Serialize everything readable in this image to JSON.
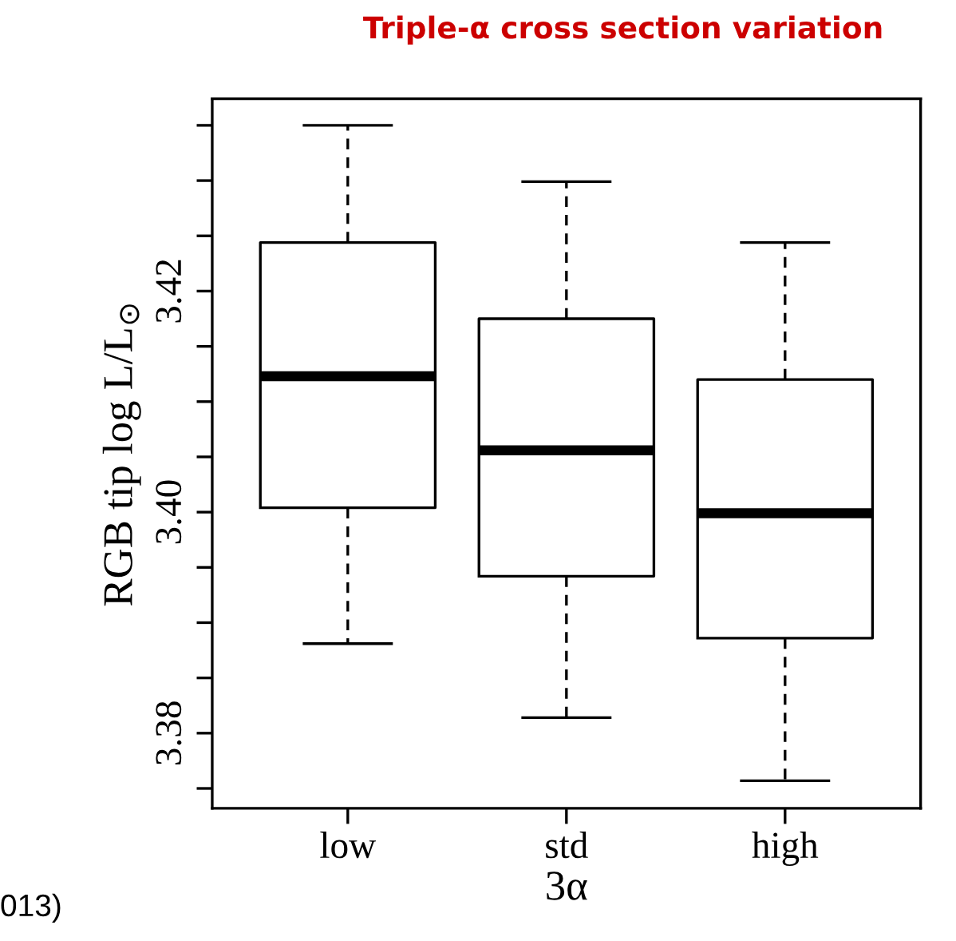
{
  "chart_data": {
    "type": "box",
    "title": "Triple-α cross section variation",
    "xlabel": "3α",
    "ylabel": "RGB tip log L/L$_{⊙}$",
    "categories": [
      "low",
      "std",
      "high"
    ],
    "boxes": [
      {
        "low": 3.3881,
        "q1": 3.4004,
        "median": 3.4123,
        "q3": 3.4244,
        "high": 3.435
      },
      {
        "low": 3.3814,
        "q1": 3.3942,
        "median": 3.4056,
        "q3": 3.4175,
        "high": 3.4299
      },
      {
        "low": 3.3757,
        "q1": 3.3886,
        "median": 3.3999,
        "q3": 3.412,
        "high": 3.4244
      }
    ],
    "ylim": [
      3.3732,
      3.4374
    ],
    "yticks": [
      {
        "value": 3.375,
        "label": null
      },
      {
        "value": 3.38,
        "label": "3.38"
      },
      {
        "value": 3.385,
        "label": null
      },
      {
        "value": 3.39,
        "label": null
      },
      {
        "value": 3.395,
        "label": null
      },
      {
        "value": 3.4,
        "label": "3.40"
      },
      {
        "value": 3.405,
        "label": null
      },
      {
        "value": 3.41,
        "label": null
      },
      {
        "value": 3.415,
        "label": null
      },
      {
        "value": 3.42,
        "label": "3.42"
      },
      {
        "value": 3.425,
        "label": null
      },
      {
        "value": 3.43,
        "label": null
      },
      {
        "value": 3.435,
        "label": null
      }
    ],
    "annotations": [
      "013)"
    ],
    "grid": false,
    "legend": false
  }
}
